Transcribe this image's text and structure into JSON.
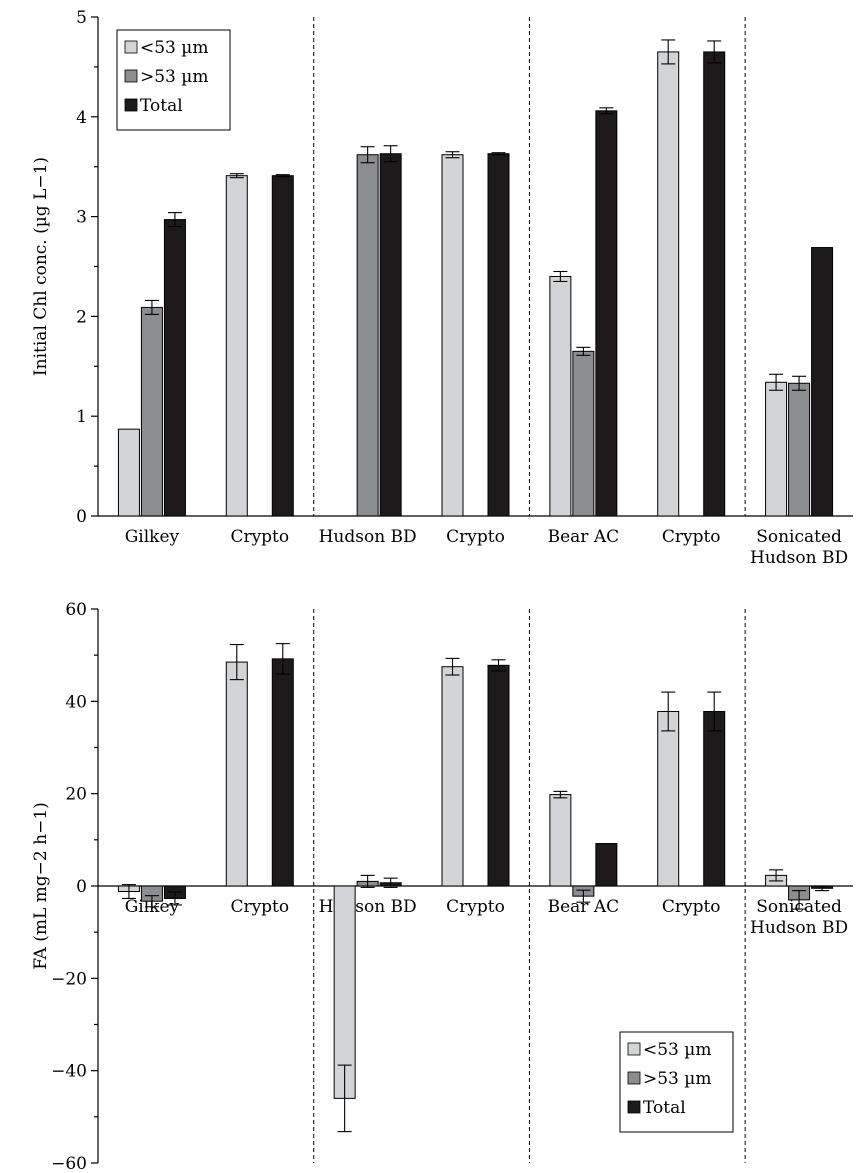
{
  "colors": {
    "lt53": "#d3d4d6",
    "gt53": "#8c8d8f",
    "total": "#1c1a1b"
  },
  "chart_data": [
    {
      "type": "bar",
      "title": "",
      "ylabel": "Initial Chl conc. (µg L−1)",
      "xlabel": "",
      "ylim": [
        0,
        5
      ],
      "yticks": [
        0,
        1,
        2,
        3,
        4,
        5
      ],
      "tick_labels": [
        "0",
        "1",
        "2",
        "3",
        "4",
        "5"
      ],
      "legend_position": "top-left",
      "legend": [
        {
          "key": "lt53",
          "label": "<53 µm"
        },
        {
          "key": "gt53",
          "label": ">53 µm"
        },
        {
          "key": "total",
          "label": "Total"
        }
      ],
      "categories": [
        [
          "Gilkey"
        ],
        [
          "Crypto"
        ],
        [
          "Hudson BD"
        ],
        [
          "Crypto"
        ],
        [
          "Bear AC"
        ],
        [
          "Crypto"
        ],
        [
          "Sonicated",
          "Hudson BD"
        ]
      ],
      "dividers_after": [
        1,
        3,
        5
      ],
      "series": [
        {
          "key": "lt53",
          "name": "<53 µm",
          "values": [
            0.87,
            3.41,
            null,
            3.62,
            2.4,
            4.65,
            1.34
          ],
          "errors": [
            0.0,
            0.02,
            null,
            0.03,
            0.05,
            0.12,
            0.08
          ]
        },
        {
          "key": "gt53",
          "name": ">53 µm",
          "values": [
            2.09,
            null,
            3.62,
            null,
            1.65,
            null,
            1.33
          ],
          "errors": [
            0.07,
            null,
            0.08,
            null,
            0.04,
            null,
            0.07
          ]
        },
        {
          "key": "total",
          "name": "Total",
          "values": [
            2.97,
            3.41,
            3.63,
            3.63,
            4.06,
            4.65,
            2.69
          ],
          "errors": [
            0.07,
            0.01,
            0.08,
            0.01,
            0.03,
            0.11,
            0.0
          ]
        }
      ]
    },
    {
      "type": "bar",
      "title": "",
      "ylabel": "FA (mL mg−2 h−1)",
      "xlabel": "",
      "ylim": [
        -60,
        60
      ],
      "yticks": [
        -60,
        -40,
        -20,
        0,
        20,
        40,
        60
      ],
      "tick_labels": [
        "−60",
        "−40",
        "−20",
        "0",
        "20",
        "40",
        "60"
      ],
      "legend_position": "bottom-right",
      "legend": [
        {
          "key": "lt53",
          "label": "<53 µm"
        },
        {
          "key": "gt53",
          "label": ">53 µm"
        },
        {
          "key": "total",
          "label": "Total"
        }
      ],
      "categories": [
        [
          "Gilkey"
        ],
        [
          "Crypto"
        ],
        [
          "Hudson BD"
        ],
        [
          "Crypto"
        ],
        [
          "Bear AC"
        ],
        [
          "Crypto"
        ],
        [
          "Sonicated",
          "Hudson BD"
        ]
      ],
      "dividers_after": [
        1,
        3,
        5
      ],
      "series": [
        {
          "key": "lt53",
          "name": "<53 µm",
          "values": [
            -1.2,
            48.5,
            -46.0,
            47.5,
            19.8,
            37.8,
            2.3
          ],
          "errors": [
            1.5,
            3.8,
            7.2,
            1.8,
            0.7,
            4.2,
            1.2
          ]
        },
        {
          "key": "gt53",
          "name": ">53 µm",
          "values": [
            -3.3,
            null,
            1.0,
            null,
            -2.2,
            null,
            -3.0
          ],
          "errors": [
            1.2,
            null,
            1.3,
            null,
            1.3,
            null,
            2.0
          ]
        },
        {
          "key": "total",
          "name": "Total",
          "values": [
            -2.7,
            49.2,
            0.7,
            47.8,
            9.2,
            37.8,
            -0.5
          ],
          "errors": [
            1.4,
            3.3,
            1.0,
            1.2,
            0.0,
            4.2,
            0.5
          ]
        }
      ]
    }
  ]
}
